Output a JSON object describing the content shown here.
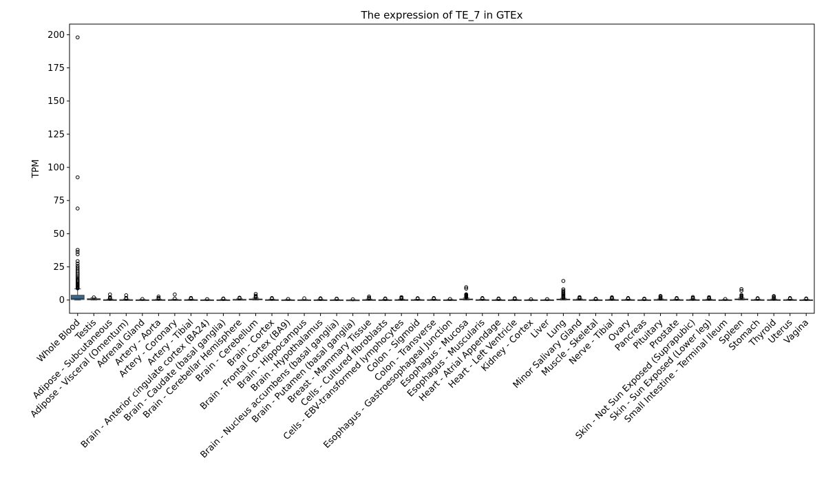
{
  "chart_data": {
    "type": "box",
    "title": "The expression of TE_7 in GTEx",
    "xlabel": "",
    "ylabel": "TPM",
    "ylim": [
      -10,
      208
    ],
    "yticks": [
      0,
      25,
      50,
      75,
      100,
      125,
      150,
      175,
      200
    ],
    "grid": false,
    "legend": "none",
    "colors": {
      "box_fill": "#3d6a8f",
      "box_edge": "#3a3a3a",
      "median": "#3a3a3a",
      "outlier_edge": "#000000"
    },
    "categories": [
      "Whole Blood",
      "Testis",
      "Adipose - Subcutaneous",
      "Adipose - Visceral (Omentum)",
      "Adrenal Gland",
      "Artery - Aorta",
      "Artery - Coronary",
      "Artery - Tibial",
      "Brain - Anterior cingulate cortex (BA24)",
      "Brain - Caudate (basal ganglia)",
      "Brain - Cerebellar Hemisphere",
      "Brain - Cerebellum",
      "Brain - Cortex",
      "Brain - Frontal Cortex (BA9)",
      "Brain - Hippocampus",
      "Brain - Hypothalamus",
      "Brain - Nucleus accumbens (basal ganglia)",
      "Brain - Putamen (basal ganglia)",
      "Breast - Mammary Tissue",
      "Cells - Cultured fibroblasts",
      "Cells - EBV-transformed lymphocytes",
      "Colon - Sigmoid",
      "Colon - Transverse",
      "Esophagus - Gastroesophageal Junction",
      "Esophagus - Mucosa",
      "Esophagus - Muscularis",
      "Heart - Atrial Appendage",
      "Heart - Left Ventricle",
      "Kidney - Cortex",
      "Liver",
      "Lung",
      "Minor Salivary Gland",
      "Muscle - Skeletal",
      "Nerve - Tibial",
      "Ovary",
      "Pancreas",
      "Pituitary",
      "Prostate",
      "Skin - Not Sun Exposed (Suprapubic)",
      "Skin - Sun Exposed (Lower leg)",
      "Small Intestine - Terminal Ileum",
      "Spleen",
      "Stomach",
      "Thyroid",
      "Uterus",
      "Vagina"
    ],
    "boxes": [
      {
        "q1": 0.4,
        "median": 1.2,
        "q3": 3.6,
        "whislo": 0.0,
        "whishi": 8.4,
        "fliers": [
          8.8,
          9.3,
          9.8,
          10.3,
          10.8,
          11.3,
          11.9,
          12.5,
          13.2,
          14,
          14.8,
          15.6,
          16.5,
          17.5,
          18.5,
          19.6,
          20.7,
          21.9,
          23.2,
          24.5,
          25.8,
          27.5,
          29.3,
          34.5,
          36.3,
          37.8,
          69,
          92.5,
          198
        ]
      },
      {
        "q1": 0.2,
        "median": 0.5,
        "q3": 1.0,
        "whislo": 0.0,
        "whishi": 1.6,
        "fliers": [
          2.0
        ]
      },
      {
        "q1": 0.0,
        "median": 0.1,
        "q3": 0.3,
        "whislo": 0.0,
        "whishi": 0.7,
        "fliers": [
          1.0,
          1.5,
          2.2,
          4.2
        ]
      },
      {
        "q1": 0.0,
        "median": 0.1,
        "q3": 0.3,
        "whislo": 0.0,
        "whishi": 0.7,
        "fliers": [
          1.0,
          1.6,
          3.6
        ]
      },
      {
        "q1": 0.0,
        "median": 0.05,
        "q3": 0.2,
        "whislo": 0.0,
        "whishi": 0.5,
        "fliers": [
          0.8
        ]
      },
      {
        "q1": 0.0,
        "median": 0.1,
        "q3": 0.3,
        "whislo": 0.0,
        "whishi": 0.6,
        "fliers": [
          1.0,
          1.6,
          2.6
        ]
      },
      {
        "q1": 0.0,
        "median": 0.1,
        "q3": 0.3,
        "whislo": 0.0,
        "whishi": 0.6,
        "fliers": [
          1.1,
          4.2
        ]
      },
      {
        "q1": 0.0,
        "median": 0.1,
        "q3": 0.3,
        "whislo": 0.0,
        "whishi": 0.6,
        "fliers": [
          1.0,
          1.6
        ]
      },
      {
        "q1": 0.0,
        "median": 0.05,
        "q3": 0.2,
        "whislo": 0.0,
        "whishi": 0.4,
        "fliers": [
          0.7
        ]
      },
      {
        "q1": 0.0,
        "median": 0.05,
        "q3": 0.2,
        "whislo": 0.0,
        "whishi": 0.5,
        "fliers": [
          0.9,
          1.2
        ]
      },
      {
        "q1": 0.1,
        "median": 0.2,
        "q3": 0.5,
        "whislo": 0.0,
        "whishi": 0.9,
        "fliers": [
          1.3,
          1.8
        ]
      },
      {
        "q1": 0.2,
        "median": 0.4,
        "q3": 0.8,
        "whislo": 0.0,
        "whishi": 1.5,
        "fliers": [
          2.0,
          2.6,
          3.3,
          4.6
        ]
      },
      {
        "q1": 0.0,
        "median": 0.1,
        "q3": 0.3,
        "whislo": 0.0,
        "whishi": 0.6,
        "fliers": [
          1.0,
          1.5
        ]
      },
      {
        "q1": 0.0,
        "median": 0.05,
        "q3": 0.2,
        "whislo": 0.0,
        "whishi": 0.5,
        "fliers": [
          0.8
        ]
      },
      {
        "q1": 0.0,
        "median": 0.05,
        "q3": 0.2,
        "whislo": 0.0,
        "whishi": 0.4,
        "fliers": [
          1.3
        ]
      },
      {
        "q1": 0.0,
        "median": 0.05,
        "q3": 0.2,
        "whislo": 0.0,
        "whishi": 0.5,
        "fliers": [
          0.9,
          1.3
        ]
      },
      {
        "q1": 0.0,
        "median": 0.05,
        "q3": 0.2,
        "whislo": 0.0,
        "whishi": 0.4,
        "fliers": [
          0.8,
          1.1
        ]
      },
      {
        "q1": 0.0,
        "median": 0.02,
        "q3": 0.1,
        "whislo": 0.0,
        "whishi": 0.3,
        "fliers": [
          0.6
        ]
      },
      {
        "q1": 0.0,
        "median": 0.1,
        "q3": 0.3,
        "whislo": 0.0,
        "whishi": 0.7,
        "fliers": [
          1.1,
          1.7,
          2.6
        ]
      },
      {
        "q1": 0.0,
        "median": 0.05,
        "q3": 0.2,
        "whislo": 0.0,
        "whishi": 0.5,
        "fliers": [
          0.8,
          1.2
        ]
      },
      {
        "q1": 0.0,
        "median": 0.1,
        "q3": 0.3,
        "whislo": 0.0,
        "whishi": 0.6,
        "fliers": [
          1.0,
          1.6,
          2.2
        ]
      },
      {
        "q1": 0.0,
        "median": 0.1,
        "q3": 0.3,
        "whislo": 0.0,
        "whishi": 0.6,
        "fliers": [
          1.0,
          1.4
        ]
      },
      {
        "q1": 0.0,
        "median": 0.1,
        "q3": 0.3,
        "whislo": 0.0,
        "whishi": 0.6,
        "fliers": [
          1.0,
          1.5
        ]
      },
      {
        "q1": 0.0,
        "median": 0.05,
        "q3": 0.2,
        "whislo": 0.0,
        "whishi": 0.5,
        "fliers": [
          0.8
        ]
      },
      {
        "q1": 0.2,
        "median": 0.4,
        "q3": 0.8,
        "whislo": 0.0,
        "whishi": 1.5,
        "fliers": [
          1.9,
          2.3,
          2.7,
          3.1,
          3.5,
          3.9,
          4.3,
          8.6,
          9.7
        ]
      },
      {
        "q1": 0.0,
        "median": 0.1,
        "q3": 0.3,
        "whislo": 0.0,
        "whishi": 0.6,
        "fliers": [
          1.0,
          1.5
        ]
      },
      {
        "q1": 0.0,
        "median": 0.05,
        "q3": 0.2,
        "whislo": 0.0,
        "whishi": 0.5,
        "fliers": [
          0.8,
          1.2
        ]
      },
      {
        "q1": 0.0,
        "median": 0.05,
        "q3": 0.2,
        "whislo": 0.0,
        "whishi": 0.5,
        "fliers": [
          0.8,
          1.4
        ]
      },
      {
        "q1": 0.0,
        "median": 0.05,
        "q3": 0.2,
        "whislo": 0.0,
        "whishi": 0.4,
        "fliers": [
          0.6
        ]
      },
      {
        "q1": 0.0,
        "median": 0.05,
        "q3": 0.2,
        "whislo": 0.0,
        "whishi": 0.4,
        "fliers": [
          0.7
        ]
      },
      {
        "q1": 0.1,
        "median": 0.3,
        "q3": 0.7,
        "whislo": 0.0,
        "whishi": 1.3,
        "fliers": [
          1.7,
          2.2,
          2.8,
          3.4,
          4.0,
          4.7,
          5.4,
          6.2,
          7.0,
          8.1,
          14.4
        ]
      },
      {
        "q1": 0.0,
        "median": 0.1,
        "q3": 0.4,
        "whislo": 0.0,
        "whishi": 0.8,
        "fliers": [
          1.2,
          1.7,
          2.2
        ]
      },
      {
        "q1": 0.0,
        "median": 0.05,
        "q3": 0.2,
        "whislo": 0.0,
        "whishi": 0.4,
        "fliers": [
          0.7,
          1.0
        ]
      },
      {
        "q1": 0.0,
        "median": 0.1,
        "q3": 0.3,
        "whislo": 0.0,
        "whishi": 0.6,
        "fliers": [
          1.0,
          1.5,
          2.1
        ]
      },
      {
        "q1": 0.0,
        "median": 0.1,
        "q3": 0.3,
        "whislo": 0.0,
        "whishi": 0.6,
        "fliers": [
          1.0,
          1.5
        ]
      },
      {
        "q1": 0.0,
        "median": 0.05,
        "q3": 0.2,
        "whislo": 0.0,
        "whishi": 0.4,
        "fliers": [
          0.7,
          1.1
        ]
      },
      {
        "q1": 0.0,
        "median": 0.1,
        "q3": 0.4,
        "whislo": 0.0,
        "whishi": 0.8,
        "fliers": [
          1.2,
          1.8,
          2.5,
          3.1
        ]
      },
      {
        "q1": 0.0,
        "median": 0.1,
        "q3": 0.3,
        "whislo": 0.0,
        "whishi": 0.6,
        "fliers": [
          1.0,
          1.5
        ]
      },
      {
        "q1": 0.0,
        "median": 0.1,
        "q3": 0.3,
        "whislo": 0.0,
        "whishi": 0.6,
        "fliers": [
          1.0,
          1.6,
          2.3
        ]
      },
      {
        "q1": 0.0,
        "median": 0.1,
        "q3": 0.3,
        "whislo": 0.0,
        "whishi": 0.6,
        "fliers": [
          1.0,
          1.5,
          2.2
        ]
      },
      {
        "q1": 0.0,
        "median": 0.05,
        "q3": 0.2,
        "whislo": 0.0,
        "whishi": 0.5,
        "fliers": [
          0.8
        ]
      },
      {
        "q1": 0.2,
        "median": 0.4,
        "q3": 0.8,
        "whislo": 0.0,
        "whishi": 1.5,
        "fliers": [
          2.0,
          2.6,
          3.2,
          3.8,
          7.0,
          8.3
        ]
      },
      {
        "q1": 0.0,
        "median": 0.1,
        "q3": 0.3,
        "whislo": 0.0,
        "whishi": 0.6,
        "fliers": [
          1.0,
          1.4
        ]
      },
      {
        "q1": 0.0,
        "median": 0.1,
        "q3": 0.3,
        "whislo": 0.0,
        "whishi": 0.7,
        "fliers": [
          1.1,
          1.7,
          2.4,
          3.0
        ]
      },
      {
        "q1": 0.0,
        "median": 0.1,
        "q3": 0.3,
        "whislo": 0.0,
        "whishi": 0.6,
        "fliers": [
          1.0,
          1.5
        ]
      },
      {
        "q1": 0.0,
        "median": 0.05,
        "q3": 0.2,
        "whislo": 0.0,
        "whishi": 0.5,
        "fliers": [
          0.8,
          1.2
        ]
      }
    ]
  }
}
